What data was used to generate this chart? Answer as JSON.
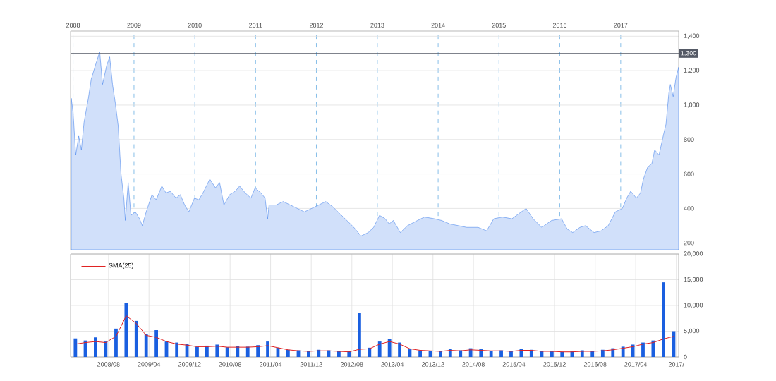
{
  "chart_data": [
    {
      "type": "area",
      "color": "#2f74e8",
      "x": [
        "2007-12-21",
        "2008-01-01",
        "2008-01-17",
        "2008-02-04",
        "2008-02-20",
        "2008-03-07",
        "2008-04-02",
        "2008-04-19",
        "2008-05-14",
        "2008-06-09",
        "2008-06-26",
        "2008-07-21",
        "2008-08-08",
        "2008-08-25",
        "2008-09-11",
        "2008-09-28",
        "2008-10-15",
        "2008-11-01",
        "2008-11-10",
        "2008-11-27",
        "2008-12-14",
        "2009-01-09",
        "2009-02-03",
        "2009-02-20",
        "2009-03-15",
        "2009-04-19",
        "2009-05-14",
        "2009-06-17",
        "2009-07-12",
        "2009-08-07",
        "2009-09-10",
        "2009-10-06",
        "2009-11-01",
        "2009-11-26",
        "2009-12-30",
        "2010-01-25",
        "2010-02-19",
        "2010-04-01",
        "2010-05-05",
        "2010-05-30",
        "2010-06-25",
        "2010-07-29",
        "2010-09-01",
        "2010-09-27",
        "2010-10-31",
        "2010-12-04",
        "2010-12-29",
        "2011-02-02",
        "2011-02-27",
        "2011-03-14",
        "2011-03-23",
        "2011-05-04",
        "2011-06-16",
        "2011-07-28",
        "2011-09-09",
        "2011-10-21",
        "2011-12-03",
        "2012-01-15",
        "2012-02-26",
        "2012-04-08",
        "2012-05-20",
        "2012-07-02",
        "2012-08-13",
        "2012-09-25",
        "2012-11-07",
        "2012-12-10",
        "2013-01-14",
        "2013-02-17",
        "2013-03-13",
        "2013-04-07",
        "2013-05-19",
        "2013-07-01",
        "2013-08-30",
        "2013-10-11",
        "2013-12-10",
        "2014-01-22",
        "2014-03-12",
        "2014-05-02",
        "2014-06-22",
        "2014-08-29",
        "2014-10-19",
        "2014-12-01",
        "2015-01-21",
        "2015-03-20",
        "2015-05-01",
        "2015-06-13",
        "2015-07-25",
        "2015-09-15",
        "2015-11-13",
        "2016-01-12",
        "2016-02-15",
        "2016-03-19",
        "2016-05-01",
        "2016-06-04",
        "2016-07-25",
        "2016-09-06",
        "2016-10-18",
        "2016-11-30",
        "2017-01-11",
        "2017-02-06",
        "2017-03-02",
        "2017-04-05",
        "2017-04-30",
        "2017-05-17",
        "2017-06-12",
        "2017-07-07",
        "2017-07-24",
        "2017-08-19",
        "2017-09-13",
        "2017-09-30",
        "2017-10-17",
        "2017-10-26",
        "2017-11-12",
        "2017-11-29",
        "2017-12-07",
        "2017-12-15"
      ],
      "values": [
        1040,
        960,
        710,
        820,
        740,
        900,
        1040,
        1150,
        1230,
        1310,
        1120,
        1230,
        1280,
        1120,
        1010,
        880,
        600,
        460,
        330,
        550,
        360,
        380,
        340,
        300,
        380,
        480,
        450,
        530,
        490,
        500,
        460,
        480,
        420,
        380,
        460,
        450,
        490,
        570,
        520,
        550,
        420,
        480,
        500,
        530,
        490,
        460,
        520,
        490,
        460,
        340,
        420,
        420,
        440,
        420,
        400,
        380,
        400,
        420,
        440,
        410,
        370,
        330,
        290,
        240,
        260,
        290,
        360,
        340,
        310,
        330,
        260,
        300,
        330,
        350,
        340,
        330,
        310,
        300,
        290,
        290,
        270,
        340,
        350,
        340,
        370,
        400,
        340,
        290,
        330,
        340,
        280,
        260,
        290,
        300,
        260,
        270,
        300,
        380,
        400,
        460,
        500,
        460,
        490,
        570,
        640,
        660,
        740,
        710,
        820,
        890,
        1070,
        1120,
        1050,
        1160,
        1190,
        1220
      ],
      "xlim": [
        "2007-12-17",
        "2017-12-15"
      ],
      "xticks": [
        {
          "value": "2008-01-01",
          "label": "2008"
        },
        {
          "value": "2009-01-01",
          "label": "2009"
        },
        {
          "value": "2010-01-01",
          "label": "2010"
        },
        {
          "value": "2011-01-01",
          "label": "2011"
        },
        {
          "value": "2012-01-01",
          "label": "2012"
        },
        {
          "value": "2013-01-01",
          "label": "2013"
        },
        {
          "value": "2014-01-01",
          "label": "2014"
        },
        {
          "value": "2015-01-01",
          "label": "2015"
        },
        {
          "value": "2016-01-01",
          "label": "2016"
        },
        {
          "value": "2017-01-01",
          "label": "2017"
        }
      ],
      "ylim": [
        160,
        1430
      ],
      "yticks": [
        200,
        400,
        600,
        800,
        {
          "value": 1000,
          "label": "1,000"
        },
        {
          "value": 1200,
          "label": "1,200"
        },
        {
          "value": 1400,
          "label": "1,400"
        }
      ],
      "grid": true,
      "ref_lines": [
        {
          "axis": "y",
          "value": 1300,
          "label": "1,300",
          "color": "#555a66"
        }
      ]
    },
    {
      "type": "bar",
      "series": [
        {
          "type": "bar",
          "color": "#1a5fe0",
          "x": [
            "2008-01-15",
            "2008-03-15",
            "2008-05-15",
            "2008-07-15",
            "2008-09-15",
            "2008-11-15",
            "2009-01-15",
            "2009-03-15",
            "2009-05-15",
            "2009-07-15",
            "2009-09-15",
            "2009-11-15",
            "2010-01-15",
            "2010-03-15",
            "2010-05-15",
            "2010-07-15",
            "2010-09-15",
            "2010-11-15",
            "2011-01-15",
            "2011-03-15",
            "2011-05-15",
            "2011-07-15",
            "2011-09-15",
            "2011-11-15",
            "2012-01-15",
            "2012-03-15",
            "2012-05-15",
            "2012-07-15",
            "2012-09-15",
            "2012-11-15",
            "2013-01-15",
            "2013-03-15",
            "2013-05-15",
            "2013-07-15",
            "2013-09-15",
            "2013-11-15",
            "2014-01-15",
            "2014-03-15",
            "2014-05-15",
            "2014-07-15",
            "2014-09-15",
            "2014-11-15",
            "2015-01-15",
            "2015-03-15",
            "2015-05-15",
            "2015-07-15",
            "2015-09-15",
            "2015-11-15",
            "2016-01-15",
            "2016-03-15",
            "2016-05-15",
            "2016-07-15",
            "2016-09-15",
            "2016-11-15",
            "2017-01-15",
            "2017-03-15",
            "2017-05-15",
            "2017-07-15",
            "2017-09-15",
            "2017-11-15"
          ],
          "values": [
            3600,
            3200,
            3800,
            3000,
            5500,
            10500,
            7000,
            4500,
            5200,
            3000,
            2800,
            2500,
            2000,
            2200,
            2400,
            1900,
            2100,
            2000,
            2300,
            3000,
            1800,
            1400,
            1300,
            1200,
            1400,
            1300,
            1200,
            1100,
            8500,
            1800,
            3000,
            3500,
            2800,
            1500,
            1300,
            1200,
            1100,
            1600,
            1300,
            1700,
            1500,
            1200,
            1300,
            1200,
            1600,
            1400,
            1100,
            1200,
            1000,
            1100,
            1300,
            1200,
            1400,
            1700,
            2000,
            2400,
            2800,
            3200,
            14500,
            5000
          ]
        },
        {
          "type": "line",
          "name": "SMA(25)",
          "color": "#e02020",
          "x": [
            "2008-01-15",
            "2008-03-15",
            "2008-05-15",
            "2008-07-15",
            "2008-09-15",
            "2008-11-15",
            "2009-01-15",
            "2009-03-15",
            "2009-05-15",
            "2009-07-15",
            "2009-09-15",
            "2009-11-15",
            "2010-01-15",
            "2010-03-15",
            "2010-05-15",
            "2010-07-15",
            "2010-09-15",
            "2010-11-15",
            "2011-01-15",
            "2011-03-15",
            "2011-05-15",
            "2011-07-15",
            "2011-09-15",
            "2011-11-15",
            "2012-01-15",
            "2012-03-15",
            "2012-05-15",
            "2012-07-15",
            "2012-09-15",
            "2012-11-15",
            "2013-01-15",
            "2013-03-15",
            "2013-05-15",
            "2013-07-15",
            "2013-09-15",
            "2013-11-15",
            "2014-01-15",
            "2014-03-15",
            "2014-05-15",
            "2014-07-15",
            "2014-09-15",
            "2014-11-15",
            "2015-01-15",
            "2015-03-15",
            "2015-05-15",
            "2015-07-15",
            "2015-09-15",
            "2015-11-15",
            "2016-01-15",
            "2016-03-15",
            "2016-05-15",
            "2016-07-15",
            "2016-09-15",
            "2016-11-15",
            "2017-01-15",
            "2017-03-15",
            "2017-05-15",
            "2017-07-15",
            "2017-09-15",
            "2017-11-15"
          ],
          "values": [
            2500,
            2800,
            3000,
            2800,
            4000,
            8000,
            6500,
            4200,
            3800,
            3000,
            2500,
            2300,
            2000,
            2000,
            2100,
            1900,
            1900,
            1900,
            2000,
            2200,
            1800,
            1400,
            1200,
            1100,
            1200,
            1200,
            1100,
            1000,
            1500,
            1600,
            2500,
            3000,
            2500,
            1600,
            1300,
            1200,
            1100,
            1300,
            1200,
            1400,
            1300,
            1200,
            1200,
            1100,
            1300,
            1300,
            1100,
            1100,
            1000,
            1000,
            1100,
            1100,
            1200,
            1400,
            1700,
            2000,
            2500,
            2800,
            3500,
            4000
          ]
        }
      ],
      "xlim": [
        "2007-12-17",
        "2017-12-15"
      ],
      "xticks": [
        {
          "value": "2008-08-01",
          "label": "2008/08"
        },
        {
          "value": "2009-04-01",
          "label": "2009/04"
        },
        {
          "value": "2009-12-01",
          "label": "2009/12"
        },
        {
          "value": "2010-08-01",
          "label": "2010/08"
        },
        {
          "value": "2011-04-01",
          "label": "2011/04"
        },
        {
          "value": "2011-12-01",
          "label": "2011/12"
        },
        {
          "value": "2012-08-01",
          "label": "2012/08"
        },
        {
          "value": "2013-04-01",
          "label": "2013/04"
        },
        {
          "value": "2013-12-01",
          "label": "2013/12"
        },
        {
          "value": "2014-08-01",
          "label": "2014/08"
        },
        {
          "value": "2015-04-01",
          "label": "2015/04"
        },
        {
          "value": "2015-12-01",
          "label": "2015/12"
        },
        {
          "value": "2016-08-01",
          "label": "2016/08"
        },
        {
          "value": "2017-04-01",
          "label": "2017/04"
        },
        {
          "value": "2017-12-01",
          "label": "2017/"
        }
      ],
      "ylim": [
        0,
        20000
      ],
      "yticks": [
        0,
        {
          "value": 5000,
          "label": "5,000"
        },
        {
          "value": 10000,
          "label": "10,000"
        },
        {
          "value": 15000,
          "label": "15,000"
        },
        {
          "value": 20000,
          "label": "20,000"
        }
      ],
      "grid": true,
      "legend": "top left"
    }
  ]
}
